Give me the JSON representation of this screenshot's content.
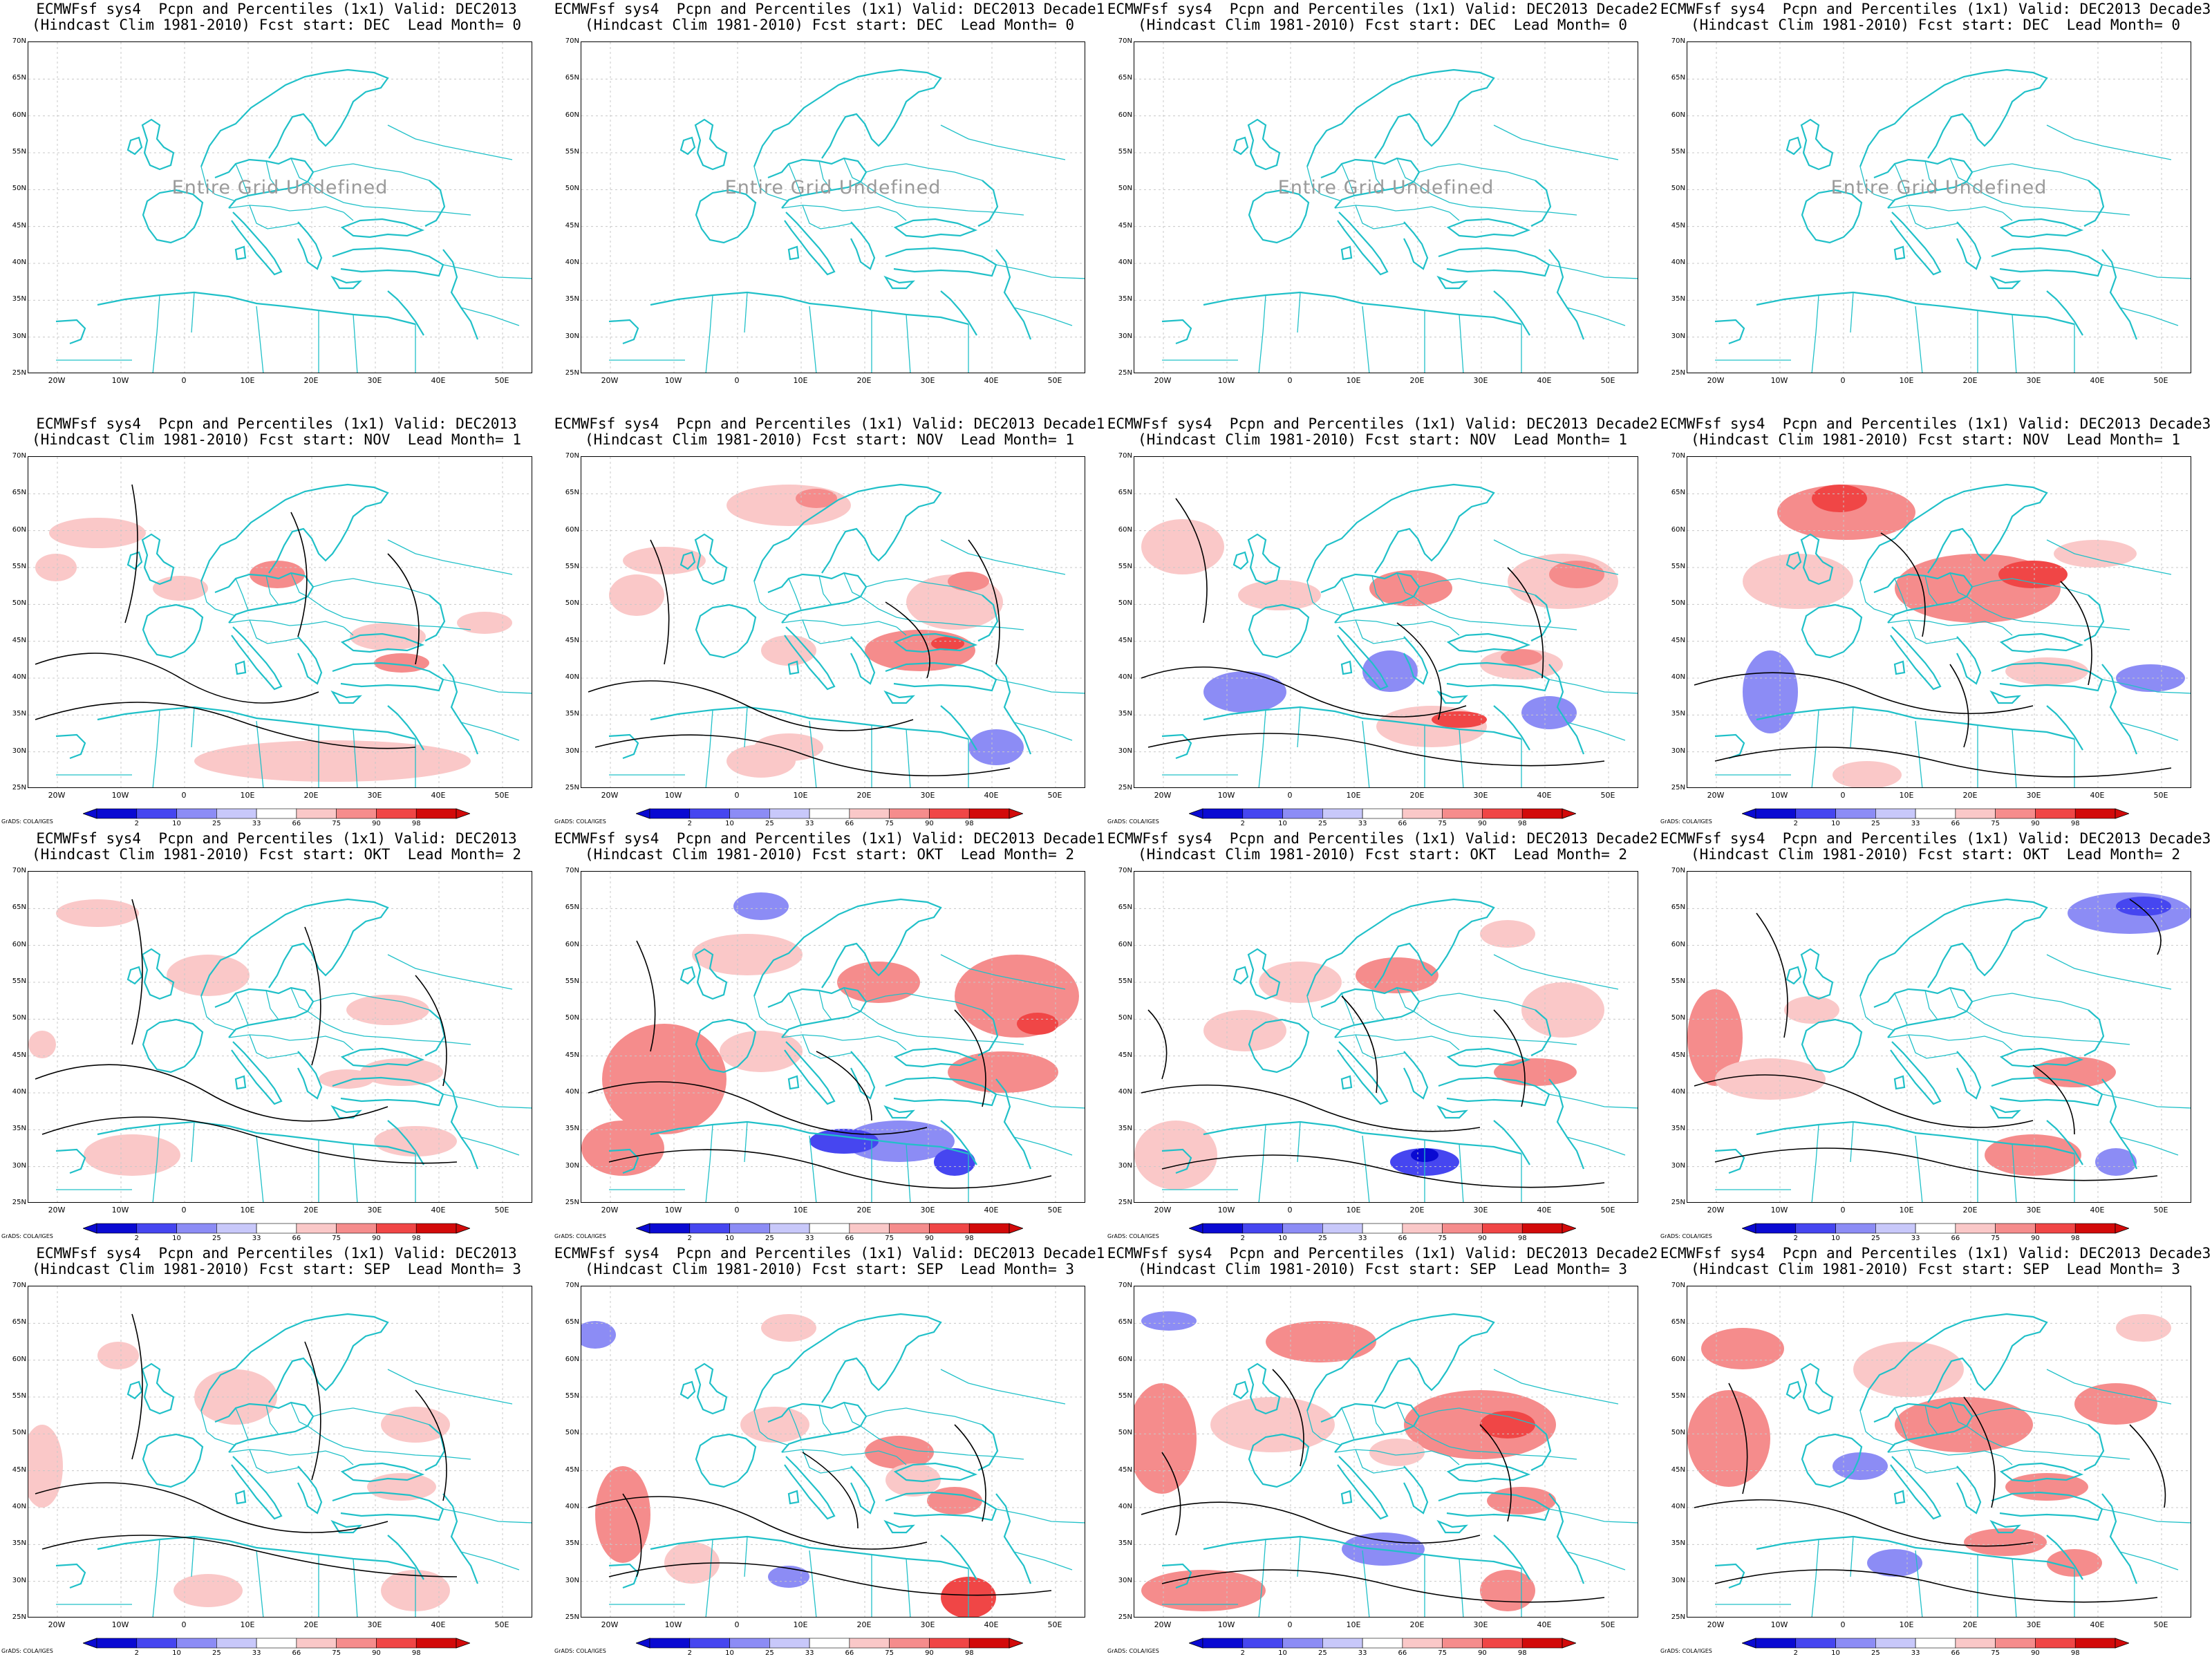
{
  "grads_label": "GrADS: COLA/IGES",
  "undefined_text": "Entire Grid Undefined",
  "lat_ticks": [
    "70N",
    "65N",
    "60N",
    "55N",
    "50N",
    "45N",
    "40N",
    "35N",
    "30N",
    "25N"
  ],
  "lon_ticks": [
    "20W",
    "10W",
    "0",
    "10E",
    "20E",
    "30E",
    "40E",
    "50E"
  ],
  "colorbar": {
    "labels": [
      "2",
      "10",
      "25",
      "33",
      "66",
      "75",
      "90",
      "98"
    ],
    "colors": [
      "#0a0ad2",
      "#4646f0",
      "#8c8cf5",
      "#c8c8fa",
      "#ffffff",
      "#fac8c8",
      "#f58c8c",
      "#f04646",
      "#d20a0a"
    ]
  },
  "colors": {
    "coast": "#20c0c8",
    "contour": "#000000",
    "grid": "#c8c8c8"
  },
  "panels": [
    {
      "line1": "ECMWFsf sys4  Pcpn and Percentiles (1x1) Valid: DEC2013",
      "line2": "(Hindcast Clim 1981-2010) Fcst start: DEC  Lead Month= 0",
      "undefined": true
    },
    {
      "line1": "ECMWFsf sys4  Pcpn and Percentiles (1x1) Valid: DEC2013 Decade1",
      "line2": "(Hindcast Clim 1981-2010) Fcst start: DEC  Lead Month= 0",
      "undefined": true
    },
    {
      "line1": "ECMWFsf sys4  Pcpn and Percentiles (1x1) Valid: DEC2013 Decade2",
      "line2": "(Hindcast Clim 1981-2010) Fcst start: DEC  Lead Month= 0",
      "undefined": true
    },
    {
      "line1": "ECMWFsf sys4  Pcpn and Percentiles (1x1) Valid: DEC2013 Decade3",
      "line2": "(Hindcast Clim 1981-2010) Fcst start: DEC  Lead Month= 0",
      "undefined": true
    },
    {
      "line1": "ECMWFsf sys4  Pcpn and Percentiles (1x1) Valid: DEC2013",
      "line2": "(Hindcast Clim 1981-2010) Fcst start: NOV  Lead Month= 1",
      "undefined": false
    },
    {
      "line1": "ECMWFsf sys4  Pcpn and Percentiles (1x1) Valid: DEC2013 Decade1",
      "line2": "(Hindcast Clim 1981-2010) Fcst start: NOV  Lead Month= 1",
      "undefined": false
    },
    {
      "line1": "ECMWFsf sys4  Pcpn and Percentiles (1x1) Valid: DEC2013 Decade2",
      "line2": "(Hindcast Clim 1981-2010) Fcst start: NOV  Lead Month= 1",
      "undefined": false
    },
    {
      "line1": "ECMWFsf sys4  Pcpn and Percentiles (1x1) Valid: DEC2013 Decade3",
      "line2": "(Hindcast Clim 1981-2010) Fcst start: NOV  Lead Month= 1",
      "undefined": false
    },
    {
      "line1": "ECMWFsf sys4  Pcpn and Percentiles (1x1) Valid: DEC2013",
      "line2": "(Hindcast Clim 1981-2010) Fcst start: OKT  Lead Month= 2",
      "undefined": false
    },
    {
      "line1": "ECMWFsf sys4  Pcpn and Percentiles (1x1) Valid: DEC2013 Decade1",
      "line2": "(Hindcast Clim 1981-2010) Fcst start: OKT  Lead Month= 2",
      "undefined": false
    },
    {
      "line1": "ECMWFsf sys4  Pcpn and Percentiles (1x1) Valid: DEC2013 Decade2",
      "line2": "(Hindcast Clim 1981-2010) Fcst start: OKT  Lead Month= 2",
      "undefined": false
    },
    {
      "line1": "ECMWFsf sys4  Pcpn and Percentiles (1x1) Valid: DEC2013 Decade3",
      "line2": "(Hindcast Clim 1981-2010) Fcst start: OKT  Lead Month= 2",
      "undefined": false
    },
    {
      "line1": "ECMWFsf sys4  Pcpn and Percentiles (1x1) Valid: DEC2013",
      "line2": "(Hindcast Clim 1981-2010) Fcst start: SEP  Lead Month= 3",
      "undefined": false
    },
    {
      "line1": "ECMWFsf sys4  Pcpn and Percentiles (1x1) Valid: DEC2013 Decade1",
      "line2": "(Hindcast Clim 1981-2010) Fcst start: SEP  Lead Month= 3",
      "undefined": false
    },
    {
      "line1": "ECMWFsf sys4  Pcpn and Percentiles (1x1) Valid: DEC2013 Decade2",
      "line2": "(Hindcast Clim 1981-2010) Fcst start: SEP  Lead Month= 3",
      "undefined": false
    },
    {
      "line1": "ECMWFsf sys4  Pcpn and Percentiles (1x1) Valid: DEC2013 Decade3",
      "line2": "(Hindcast Clim 1981-2010) Fcst start: SEP  Lead Month= 3",
      "undefined": false
    }
  ]
}
